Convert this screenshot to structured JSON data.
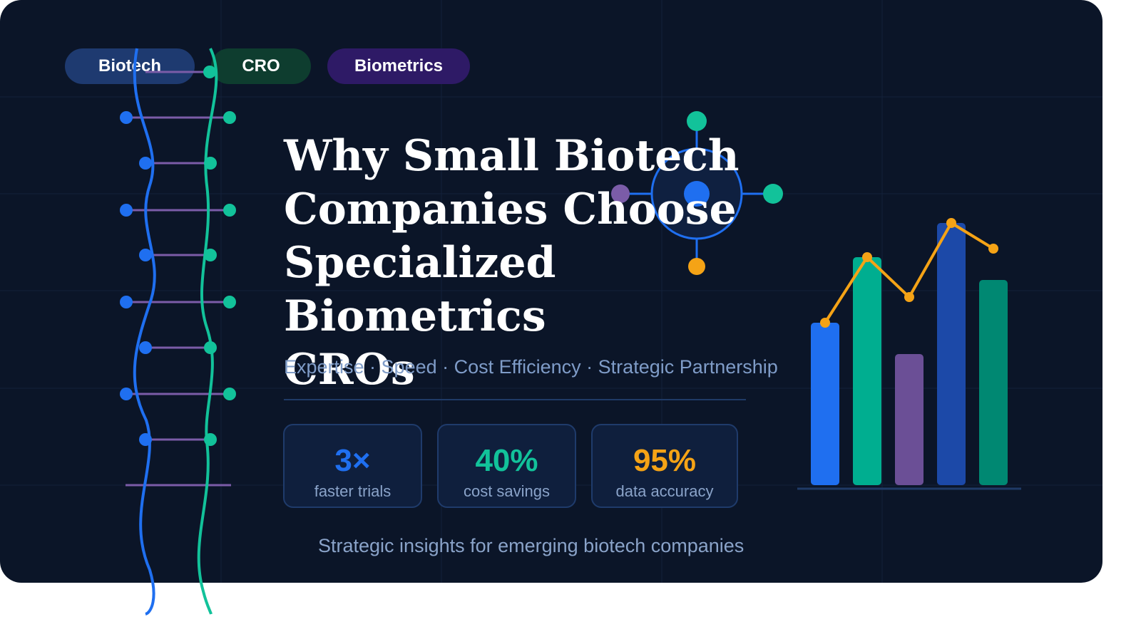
{
  "tags": [
    "Biotech",
    "CRO",
    "Biometrics"
  ],
  "title": "Why Small Biotech\nCompanies Choose\nSpecialized  Biometrics\nCROs",
  "subtitle": "Expertise · Speed · Cost Efficiency · Strategic Partnership",
  "stats": [
    {
      "value": "3×",
      "label": "faster trials"
    },
    {
      "value": "40%",
      "label": "cost savings"
    },
    {
      "value": "95%",
      "label": "data accuracy"
    }
  ],
  "footer": "Strategic insights for emerging biotech companies",
  "colors": {
    "background": "#0b1528",
    "blue": "#1f6ff0",
    "teal": "#12c29a",
    "purple": "#7b5ca8",
    "orange": "#f5a316"
  },
  "icons": [
    "dna-helix-icon",
    "molecule-icon"
  ],
  "chart_data": {
    "type": "bar",
    "categories": [
      "",
      "",
      "",
      "",
      ""
    ],
    "values": [
      57,
      80,
      46,
      92,
      72
    ],
    "line_values": [
      57,
      80,
      66,
      92,
      83
    ],
    "ylim": [
      0,
      100
    ],
    "grid": false,
    "bar_colors": [
      "#1f6ff0",
      "#00ae90",
      "#6b4f96",
      "#1c49a8",
      "#008872"
    ],
    "line_color": "#f5a316"
  }
}
